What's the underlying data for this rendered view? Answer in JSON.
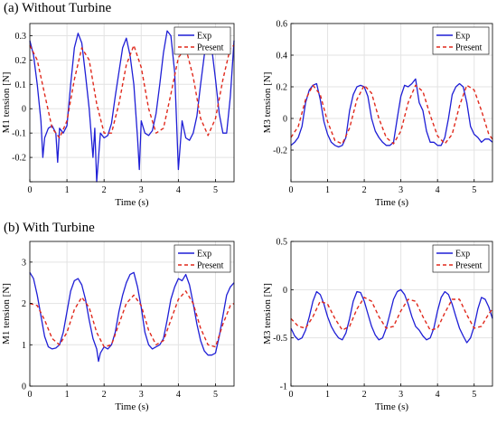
{
  "sections": [
    {
      "label": "(a) Without Turbine"
    },
    {
      "label": "(b) With Turbine"
    }
  ],
  "colors": {
    "exp": "#1f1fd6",
    "present": "#e0291c",
    "grid": "#e3e3e3",
    "axis": "#000000"
  },
  "chart_data": [
    {
      "type": "line",
      "xlabel": "Time (s)",
      "ylabel": "M1 tension [N]",
      "xlim": [
        0,
        5.5
      ],
      "ylim": [
        -0.3,
        0.35
      ],
      "xticks": [
        0,
        1,
        2,
        3,
        4,
        5
      ],
      "yticks": [
        -0.3,
        -0.2,
        -0.1,
        0,
        0.1,
        0.2,
        0.3
      ],
      "ytick_labels": [
        "",
        "-0.2",
        "-0.1",
        "0",
        "0.1",
        "0.2",
        "0.3"
      ],
      "grid": true,
      "legend": "top-right",
      "series": [
        {
          "name": "Exp",
          "style": "solid",
          "x": [
            0,
            0.1,
            0.2,
            0.3,
            0.35,
            0.4,
            0.5,
            0.6,
            0.7,
            0.75,
            0.8,
            0.9,
            1.0,
            1.1,
            1.2,
            1.3,
            1.4,
            1.5,
            1.6,
            1.7,
            1.75,
            1.8,
            1.9,
            2.0,
            2.1,
            2.2,
            2.3,
            2.4,
            2.5,
            2.6,
            2.7,
            2.8,
            2.9,
            2.95,
            3.0,
            3.1,
            3.2,
            3.3,
            3.4,
            3.5,
            3.6,
            3.7,
            3.8,
            3.9,
            4.0,
            4.1,
            4.2,
            4.3,
            4.4,
            4.5,
            4.6,
            4.7,
            4.8,
            4.9,
            5.0,
            5.1,
            5.2,
            5.3,
            5.4,
            5.5
          ],
          "y": [
            0.28,
            0.22,
            0.1,
            -0.05,
            -0.2,
            -0.12,
            -0.08,
            -0.07,
            -0.1,
            -0.22,
            -0.08,
            -0.1,
            -0.07,
            0.1,
            0.25,
            0.31,
            0.27,
            0.14,
            0.0,
            -0.2,
            -0.08,
            -0.3,
            -0.1,
            -0.12,
            -0.11,
            -0.06,
            0.05,
            0.15,
            0.25,
            0.29,
            0.22,
            0.1,
            -0.12,
            -0.25,
            -0.05,
            -0.1,
            -0.11,
            -0.09,
            -0.02,
            0.1,
            0.23,
            0.32,
            0.3,
            0.15,
            -0.25,
            -0.05,
            -0.12,
            -0.13,
            -0.1,
            -0.03,
            0.1,
            0.22,
            0.3,
            0.25,
            0.12,
            -0.02,
            -0.1,
            -0.1,
            0.05,
            0.28
          ]
        },
        {
          "name": "Present",
          "style": "dashed",
          "x": [
            0,
            0.2,
            0.4,
            0.6,
            0.8,
            1.0,
            1.2,
            1.4,
            1.6,
            1.8,
            2.0,
            2.2,
            2.4,
            2.6,
            2.8,
            3.0,
            3.2,
            3.4,
            3.6,
            3.8,
            4.0,
            4.2,
            4.4,
            4.6,
            4.8,
            5.0,
            5.2,
            5.4,
            5.5
          ],
          "y": [
            0.26,
            0.2,
            0.06,
            -0.08,
            -0.12,
            -0.05,
            0.12,
            0.25,
            0.2,
            0.02,
            -0.1,
            -0.1,
            0.02,
            0.18,
            0.26,
            0.17,
            0.0,
            -0.1,
            -0.08,
            0.06,
            0.21,
            0.25,
            0.13,
            -0.04,
            -0.11,
            -0.04,
            0.12,
            0.25,
            0.26
          ]
        }
      ]
    },
    {
      "type": "line",
      "xlabel": "Time (s)",
      "ylabel": "M3 tension [N]",
      "xlim": [
        0,
        5.5
      ],
      "ylim": [
        -0.4,
        0.6
      ],
      "xticks": [
        0,
        1,
        2,
        3,
        4,
        5
      ],
      "yticks": [
        -0.2,
        0,
        0.2,
        0.4,
        0.6
      ],
      "ytick_labels": [
        "-0.2",
        "0",
        "0.2",
        "0.4",
        "0.6"
      ],
      "grid": true,
      "legend": "top-right",
      "series": [
        {
          "name": "Exp",
          "style": "solid",
          "x": [
            0,
            0.1,
            0.2,
            0.3,
            0.4,
            0.5,
            0.6,
            0.7,
            0.8,
            0.9,
            1.0,
            1.1,
            1.2,
            1.3,
            1.4,
            1.5,
            1.6,
            1.7,
            1.8,
            1.9,
            2.0,
            2.1,
            2.2,
            2.3,
            2.4,
            2.5,
            2.6,
            2.7,
            2.8,
            2.9,
            3.0,
            3.1,
            3.2,
            3.3,
            3.4,
            3.5,
            3.6,
            3.7,
            3.8,
            3.9,
            4.0,
            4.1,
            4.2,
            4.3,
            4.4,
            4.5,
            4.6,
            4.7,
            4.8,
            4.9,
            5.0,
            5.1,
            5.2,
            5.3,
            5.4,
            5.5
          ],
          "y": [
            -0.17,
            -0.15,
            -0.12,
            -0.05,
            0.1,
            0.18,
            0.21,
            0.22,
            0.12,
            -0.02,
            -0.1,
            -0.15,
            -0.17,
            -0.18,
            -0.17,
            -0.12,
            0.05,
            0.15,
            0.2,
            0.21,
            0.2,
            0.14,
            0.0,
            -0.08,
            -0.12,
            -0.15,
            -0.17,
            -0.17,
            -0.15,
            0.0,
            0.14,
            0.21,
            0.2,
            0.22,
            0.25,
            0.1,
            0.05,
            -0.08,
            -0.15,
            -0.15,
            -0.17,
            -0.17,
            -0.12,
            0.0,
            0.15,
            0.2,
            0.22,
            0.2,
            0.1,
            -0.05,
            -0.1,
            -0.12,
            -0.15,
            -0.13,
            -0.13,
            -0.15
          ]
        },
        {
          "name": "Present",
          "style": "dashed",
          "x": [
            0,
            0.2,
            0.4,
            0.6,
            0.8,
            1.0,
            1.2,
            1.4,
            1.6,
            1.8,
            2.0,
            2.2,
            2.4,
            2.6,
            2.8,
            3.0,
            3.2,
            3.4,
            3.6,
            3.8,
            4.0,
            4.2,
            4.4,
            4.6,
            4.8,
            5.0,
            5.2,
            5.4,
            5.5
          ],
          "y": [
            -0.12,
            -0.05,
            0.12,
            0.21,
            0.15,
            -0.02,
            -0.14,
            -0.16,
            -0.06,
            0.12,
            0.21,
            0.16,
            0.0,
            -0.12,
            -0.16,
            -0.08,
            0.1,
            0.21,
            0.17,
            0.02,
            -0.11,
            -0.16,
            -0.1,
            0.08,
            0.21,
            0.18,
            0.05,
            -0.1,
            -0.13
          ]
        }
      ]
    },
    {
      "type": "line",
      "xlabel": "Time (s)",
      "ylabel": "M1 tension [N]",
      "xlim": [
        0,
        5.5
      ],
      "ylim": [
        0,
        3.5
      ],
      "xticks": [
        0,
        1,
        2,
        3,
        4,
        5
      ],
      "yticks": [
        0,
        1,
        2,
        3
      ],
      "ytick_labels": [
        "0",
        "1",
        "2",
        "3"
      ],
      "grid": true,
      "legend": "top-right",
      "series": [
        {
          "name": "Exp",
          "style": "solid",
          "x": [
            0,
            0.1,
            0.2,
            0.3,
            0.4,
            0.5,
            0.6,
            0.7,
            0.8,
            0.9,
            1.0,
            1.1,
            1.2,
            1.3,
            1.4,
            1.5,
            1.6,
            1.7,
            1.8,
            1.85,
            1.9,
            2.0,
            2.1,
            2.2,
            2.3,
            2.4,
            2.5,
            2.6,
            2.7,
            2.8,
            2.9,
            3.0,
            3.1,
            3.2,
            3.3,
            3.4,
            3.5,
            3.6,
            3.7,
            3.8,
            3.9,
            4.0,
            4.1,
            4.2,
            4.3,
            4.4,
            4.5,
            4.6,
            4.7,
            4.8,
            4.9,
            5.0,
            5.1,
            5.2,
            5.3,
            5.4,
            5.5
          ],
          "y": [
            2.75,
            2.6,
            2.2,
            1.7,
            1.2,
            0.95,
            0.9,
            0.92,
            1.0,
            1.3,
            1.8,
            2.3,
            2.55,
            2.6,
            2.45,
            2.1,
            1.6,
            1.15,
            0.9,
            0.6,
            0.8,
            0.95,
            0.9,
            1.0,
            1.3,
            1.8,
            2.2,
            2.5,
            2.7,
            2.75,
            2.4,
            1.9,
            1.3,
            1.0,
            0.9,
            0.95,
            1.0,
            1.15,
            1.6,
            2.1,
            2.4,
            2.6,
            2.55,
            2.7,
            2.45,
            2.0,
            1.5,
            1.1,
            0.85,
            0.75,
            0.75,
            0.8,
            1.2,
            1.7,
            2.2,
            2.4,
            2.5
          ]
        },
        {
          "name": "Present",
          "style": "dashed",
          "x": [
            0,
            0.2,
            0.4,
            0.6,
            0.8,
            1.0,
            1.2,
            1.4,
            1.6,
            1.8,
            2.0,
            2.2,
            2.4,
            2.6,
            2.8,
            3.0,
            3.2,
            3.4,
            3.6,
            3.8,
            4.0,
            4.2,
            4.4,
            4.6,
            4.8,
            5.0,
            5.2,
            5.4,
            5.5
          ],
          "y": [
            2.0,
            1.95,
            1.6,
            1.15,
            1.0,
            1.3,
            1.85,
            2.15,
            1.9,
            1.3,
            0.95,
            1.0,
            1.5,
            2.0,
            2.2,
            1.95,
            1.35,
            1.0,
            1.1,
            1.6,
            2.1,
            2.3,
            2.0,
            1.4,
            1.0,
            0.95,
            1.5,
            1.95,
            2.0
          ]
        }
      ]
    },
    {
      "type": "line",
      "xlabel": "Time (s)",
      "ylabel": "M3 tension [N]",
      "xlim": [
        0,
        5.5
      ],
      "ylim": [
        -1,
        0.5
      ],
      "xticks": [
        0,
        1,
        2,
        3,
        4,
        5
      ],
      "yticks": [
        -1,
        -0.5,
        0,
        0.5
      ],
      "ytick_labels": [
        "-1",
        "-0.5",
        "0",
        "0.5"
      ],
      "grid": true,
      "legend": "top-right",
      "series": [
        {
          "name": "Exp",
          "style": "solid",
          "x": [
            0,
            0.1,
            0.2,
            0.3,
            0.4,
            0.5,
            0.6,
            0.7,
            0.8,
            0.9,
            1.0,
            1.1,
            1.2,
            1.3,
            1.4,
            1.5,
            1.6,
            1.7,
            1.8,
            1.9,
            2.0,
            2.1,
            2.2,
            2.3,
            2.4,
            2.5,
            2.6,
            2.7,
            2.8,
            2.9,
            3.0,
            3.1,
            3.2,
            3.3,
            3.4,
            3.5,
            3.6,
            3.7,
            3.8,
            3.9,
            4.0,
            4.1,
            4.2,
            4.3,
            4.4,
            4.5,
            4.6,
            4.7,
            4.8,
            4.9,
            5.0,
            5.1,
            5.2,
            5.3,
            5.4,
            5.5
          ],
          "y": [
            -0.4,
            -0.48,
            -0.52,
            -0.5,
            -0.42,
            -0.28,
            -0.12,
            -0.02,
            -0.05,
            -0.15,
            -0.28,
            -0.38,
            -0.45,
            -0.5,
            -0.52,
            -0.45,
            -0.3,
            -0.12,
            -0.02,
            -0.03,
            -0.12,
            -0.25,
            -0.38,
            -0.47,
            -0.52,
            -0.5,
            -0.4,
            -0.25,
            -0.1,
            -0.02,
            0.0,
            -0.05,
            -0.15,
            -0.28,
            -0.38,
            -0.42,
            -0.48,
            -0.52,
            -0.5,
            -0.4,
            -0.22,
            -0.08,
            -0.02,
            -0.05,
            -0.15,
            -0.28,
            -0.4,
            -0.48,
            -0.55,
            -0.5,
            -0.38,
            -0.2,
            -0.08,
            -0.1,
            -0.18,
            -0.3
          ]
        },
        {
          "name": "Present",
          "style": "dashed",
          "x": [
            0,
            0.2,
            0.4,
            0.6,
            0.8,
            1.0,
            1.2,
            1.4,
            1.6,
            1.8,
            2.0,
            2.2,
            2.4,
            2.6,
            2.8,
            3.0,
            3.2,
            3.4,
            3.6,
            3.8,
            4.0,
            4.2,
            4.4,
            4.6,
            4.8,
            5.0,
            5.2,
            5.4,
            5.5
          ],
          "y": [
            -0.3,
            -0.38,
            -0.4,
            -0.28,
            -0.12,
            -0.15,
            -0.3,
            -0.42,
            -0.38,
            -0.2,
            -0.08,
            -0.12,
            -0.28,
            -0.4,
            -0.38,
            -0.22,
            -0.1,
            -0.12,
            -0.28,
            -0.42,
            -0.4,
            -0.24,
            -0.1,
            -0.1,
            -0.26,
            -0.4,
            -0.38,
            -0.25,
            -0.2
          ]
        }
      ]
    }
  ]
}
